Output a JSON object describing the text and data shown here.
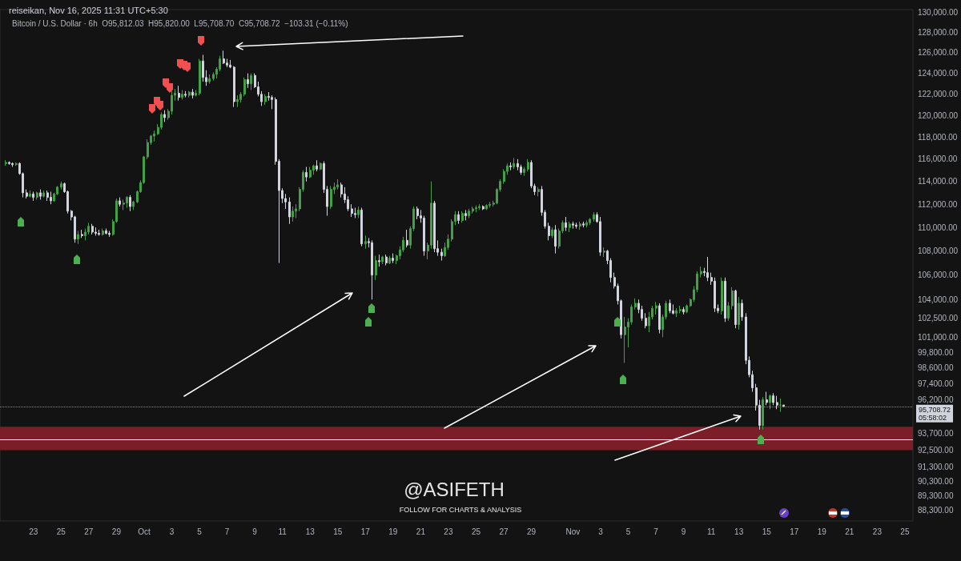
{
  "chart_data": {
    "type": "candlestick",
    "title": "reiseikan, Nov 16, 2025 11:31 UTC+5:30",
    "subtitle": "Bitcoin / U.S. Dollar · 6h  O95,812.03  H95,820.00  L95,708.70  C95,708.72  −103.31 (−0.11%)",
    "annotations": [
      "@ASIFETH",
      "FOLLOW FOR CHARTS & ANALYSIS",
      "05:58:02"
    ],
    "log": true,
    "ylim": [
      87550,
      130300
    ],
    "yticks": [
      {
        "value": 130000,
        "label": "130,000.00"
      },
      {
        "value": 128000,
        "label": "128,000.00"
      },
      {
        "value": 126000,
        "label": "126,000.00"
      },
      {
        "value": 124000,
        "label": "124,000.00"
      },
      {
        "value": 122000,
        "label": "122,000.00"
      },
      {
        "value": 120000,
        "label": "120,000.00"
      },
      {
        "value": 118000,
        "label": "118,000.00"
      },
      {
        "value": 116000,
        "label": "116,000.00"
      },
      {
        "value": 114000,
        "label": "114,000.00"
      },
      {
        "value": 112000,
        "label": "112,000.00"
      },
      {
        "value": 110000,
        "label": "110,000.00"
      },
      {
        "value": 108000,
        "label": "108,000.00"
      },
      {
        "value": 106000,
        "label": "106,000.00"
      },
      {
        "value": 104000,
        "label": "104,000.00"
      },
      {
        "value": 102500,
        "label": "102,500.00"
      },
      {
        "value": 101000,
        "label": "101,000.00"
      },
      {
        "value": 99800,
        "label": "99,800.00"
      },
      {
        "value": 98600,
        "label": "98,600.00"
      },
      {
        "value": 97400,
        "label": "97,400.00"
      },
      {
        "value": 96200,
        "label": "96,200.00"
      },
      {
        "value": 93700,
        "label": "93,700.00"
      },
      {
        "value": 92500,
        "label": "92,500.00"
      },
      {
        "value": 91300,
        "label": "91,300.00"
      },
      {
        "value": 90300,
        "label": "90,300.00"
      },
      {
        "value": 89300,
        "label": "89,300.00"
      },
      {
        "value": 88300,
        "label": "88,300.00"
      }
    ],
    "xlim": [
      "2025-09-20T14:00",
      "2025-11-25T14:00"
    ],
    "xticks": [
      {
        "value": "2025-09-23",
        "label": "23"
      },
      {
        "value": "2025-09-25",
        "label": "25"
      },
      {
        "value": "2025-09-27",
        "label": "27"
      },
      {
        "value": "2025-09-29",
        "label": "29"
      },
      {
        "value": "2025-10-01",
        "label": "Oct"
      },
      {
        "value": "2025-10-03",
        "label": "3"
      },
      {
        "value": "2025-10-05",
        "label": "5"
      },
      {
        "value": "2025-10-07",
        "label": "7"
      },
      {
        "value": "2025-10-09",
        "label": "9"
      },
      {
        "value": "2025-10-11",
        "label": "11"
      },
      {
        "value": "2025-10-13",
        "label": "13"
      },
      {
        "value": "2025-10-15",
        "label": "15"
      },
      {
        "value": "2025-10-17",
        "label": "17"
      },
      {
        "value": "2025-10-19",
        "label": "19"
      },
      {
        "value": "2025-10-21",
        "label": "21"
      },
      {
        "value": "2025-10-23",
        "label": "23"
      },
      {
        "value": "2025-10-25",
        "label": "25"
      },
      {
        "value": "2025-10-27",
        "label": "27"
      },
      {
        "value": "2025-10-29",
        "label": "29"
      },
      {
        "value": "2025-11-01",
        "label": "Nov"
      },
      {
        "value": "2025-11-03",
        "label": "3"
      },
      {
        "value": "2025-11-05",
        "label": "5"
      },
      {
        "value": "2025-11-07",
        "label": "7"
      },
      {
        "value": "2025-11-09",
        "label": "9"
      },
      {
        "value": "2025-11-11",
        "label": "11"
      },
      {
        "value": "2025-11-13",
        "label": "13"
      },
      {
        "value": "2025-11-15",
        "label": "15"
      },
      {
        "value": "2025-11-17",
        "label": "17"
      },
      {
        "value": "2025-11-19",
        "label": "19"
      },
      {
        "value": "2025-11-21",
        "label": "21"
      },
      {
        "value": "2025-11-23",
        "label": "23"
      },
      {
        "value": "2025-11-25",
        "label": "25"
      }
    ],
    "bands": [
      {
        "axis": "y",
        "from": 92500,
        "to": 94200,
        "color": "#7b1e27"
      }
    ],
    "ref_lines": [
      {
        "axis": "y",
        "value": 93300,
        "color": "#ffffff",
        "line_style": "solid"
      },
      {
        "axis": "y",
        "value": 95708.72,
        "label": "95,708.72",
        "color": "#8a8a8a",
        "line_style": "dotted"
      }
    ],
    "x": [
      "2025-09-21T00:00",
      "2025-09-21T06:00",
      "2025-09-21T12:00",
      "2025-09-21T18:00",
      "2025-09-22T00:00",
      "2025-09-22T06:00",
      "2025-09-22T12:00",
      "2025-09-22T18:00",
      "2025-09-23T00:00",
      "2025-09-23T06:00",
      "2025-09-23T12:00",
      "2025-09-23T18:00",
      "2025-09-24T00:00",
      "2025-09-24T06:00",
      "2025-09-24T12:00",
      "2025-09-24T18:00",
      "2025-09-25T00:00",
      "2025-09-25T06:00",
      "2025-09-25T12:00",
      "2025-09-25T18:00",
      "2025-09-26T00:00",
      "2025-09-26T06:00",
      "2025-09-26T12:00",
      "2025-09-26T18:00",
      "2025-09-27T00:00",
      "2025-09-27T06:00",
      "2025-09-27T12:00",
      "2025-09-27T18:00",
      "2025-09-28T00:00",
      "2025-09-28T06:00",
      "2025-09-28T12:00",
      "2025-09-28T18:00",
      "2025-09-29T00:00",
      "2025-09-29T06:00",
      "2025-09-29T12:00",
      "2025-09-29T18:00",
      "2025-09-30T00:00",
      "2025-09-30T06:00",
      "2025-09-30T12:00",
      "2025-09-30T18:00",
      "2025-10-01T00:00",
      "2025-10-01T06:00",
      "2025-10-01T12:00",
      "2025-10-01T18:00",
      "2025-10-02T00:00",
      "2025-10-02T06:00",
      "2025-10-02T12:00",
      "2025-10-02T18:00",
      "2025-10-03T00:00",
      "2025-10-03T06:00",
      "2025-10-03T12:00",
      "2025-10-03T18:00",
      "2025-10-04T00:00",
      "2025-10-04T06:00",
      "2025-10-04T12:00",
      "2025-10-04T18:00",
      "2025-10-05T00:00",
      "2025-10-05T06:00",
      "2025-10-05T12:00",
      "2025-10-05T18:00",
      "2025-10-06T00:00",
      "2025-10-06T06:00",
      "2025-10-06T12:00",
      "2025-10-06T18:00",
      "2025-10-07T00:00",
      "2025-10-07T06:00",
      "2025-10-07T12:00",
      "2025-10-07T18:00",
      "2025-10-08T00:00",
      "2025-10-08T06:00",
      "2025-10-08T12:00",
      "2025-10-08T18:00",
      "2025-10-09T00:00",
      "2025-10-09T06:00",
      "2025-10-09T12:00",
      "2025-10-09T18:00",
      "2025-10-10T00:00",
      "2025-10-10T06:00",
      "2025-10-10T12:00",
      "2025-10-10T18:00",
      "2025-10-11T00:00",
      "2025-10-11T06:00",
      "2025-10-11T12:00",
      "2025-10-11T18:00",
      "2025-10-12T00:00",
      "2025-10-12T06:00",
      "2025-10-12T12:00",
      "2025-10-12T18:00",
      "2025-10-13T00:00",
      "2025-10-13T06:00",
      "2025-10-13T12:00",
      "2025-10-13T18:00",
      "2025-10-14T00:00",
      "2025-10-14T06:00",
      "2025-10-14T12:00",
      "2025-10-14T18:00",
      "2025-10-15T00:00",
      "2025-10-15T06:00",
      "2025-10-15T12:00",
      "2025-10-15T18:00",
      "2025-10-16T00:00",
      "2025-10-16T06:00",
      "2025-10-16T12:00",
      "2025-10-16T18:00",
      "2025-10-17T00:00",
      "2025-10-17T06:00",
      "2025-10-17T12:00",
      "2025-10-17T18:00",
      "2025-10-18T00:00",
      "2025-10-18T06:00",
      "2025-10-18T12:00",
      "2025-10-18T18:00",
      "2025-10-19T00:00",
      "2025-10-19T06:00",
      "2025-10-19T12:00",
      "2025-10-19T18:00",
      "2025-10-20T00:00",
      "2025-10-20T06:00",
      "2025-10-20T12:00",
      "2025-10-20T18:00",
      "2025-10-21T00:00",
      "2025-10-21T06:00",
      "2025-10-21T12:00",
      "2025-10-21T18:00",
      "2025-10-22T00:00",
      "2025-10-22T06:00",
      "2025-10-22T12:00",
      "2025-10-22T18:00",
      "2025-10-23T00:00",
      "2025-10-23T06:00",
      "2025-10-23T12:00",
      "2025-10-23T18:00",
      "2025-10-24T00:00",
      "2025-10-24T06:00",
      "2025-10-24T12:00",
      "2025-10-24T18:00",
      "2025-10-25T00:00",
      "2025-10-25T06:00",
      "2025-10-25T12:00",
      "2025-10-25T18:00",
      "2025-10-26T00:00",
      "2025-10-26T06:00",
      "2025-10-26T12:00",
      "2025-10-26T18:00",
      "2025-10-27T00:00",
      "2025-10-27T06:00",
      "2025-10-27T12:00",
      "2025-10-27T18:00",
      "2025-10-28T00:00",
      "2025-10-28T06:00",
      "2025-10-28T12:00",
      "2025-10-28T18:00",
      "2025-10-29T00:00",
      "2025-10-29T06:00",
      "2025-10-29T12:00",
      "2025-10-29T18:00",
      "2025-10-30T00:00",
      "2025-10-30T06:00",
      "2025-10-30T12:00",
      "2025-10-30T18:00",
      "2025-10-31T00:00",
      "2025-10-31T06:00",
      "2025-10-31T12:00",
      "2025-10-31T18:00",
      "2025-11-01T00:00",
      "2025-11-01T06:00",
      "2025-11-01T12:00",
      "2025-11-01T18:00",
      "2025-11-02T00:00",
      "2025-11-02T06:00",
      "2025-11-02T12:00",
      "2025-11-02T18:00",
      "2025-11-03T00:00",
      "2025-11-03T06:00",
      "2025-11-03T12:00",
      "2025-11-03T18:00",
      "2025-11-04T00:00",
      "2025-11-04T06:00",
      "2025-11-04T12:00",
      "2025-11-04T18:00",
      "2025-11-05T00:00",
      "2025-11-05T06:00",
      "2025-11-05T12:00",
      "2025-11-05T18:00",
      "2025-11-06T00:00",
      "2025-11-06T06:00",
      "2025-11-06T12:00",
      "2025-11-06T18:00",
      "2025-11-07T00:00",
      "2025-11-07T06:00",
      "2025-11-07T12:00",
      "2025-11-07T18:00",
      "2025-11-08T00:00",
      "2025-11-08T06:00",
      "2025-11-08T12:00",
      "2025-11-08T18:00",
      "2025-11-09T00:00",
      "2025-11-09T06:00",
      "2025-11-09T12:00",
      "2025-11-09T18:00",
      "2025-11-10T00:00",
      "2025-11-10T06:00",
      "2025-11-10T12:00",
      "2025-11-10T18:00",
      "2025-11-11T00:00",
      "2025-11-11T06:00",
      "2025-11-11T12:00",
      "2025-11-11T18:00",
      "2025-11-12T00:00",
      "2025-11-12T06:00",
      "2025-11-12T12:00",
      "2025-11-12T18:00",
      "2025-11-13T00:00",
      "2025-11-13T06:00",
      "2025-11-13T12:00",
      "2025-11-13T18:00",
      "2025-11-14T00:00",
      "2025-11-14T06:00",
      "2025-11-14T12:00",
      "2025-11-14T18:00",
      "2025-11-15T00:00",
      "2025-11-15T06:00",
      "2025-11-15T12:00",
      "2025-11-15T18:00",
      "2025-11-16T00:00",
      "2025-11-16T06:00"
    ],
    "ohlc": [
      [
        115600,
        115900,
        115400,
        115700
      ],
      [
        115700,
        115800,
        115500,
        115600
      ],
      [
        115600,
        115700,
        115300,
        115500
      ],
      [
        115500,
        115700,
        115400,
        115600
      ],
      [
        115600,
        115700,
        114600,
        114700
      ],
      [
        114700,
        114800,
        112600,
        113000
      ],
      [
        113000,
        113300,
        112500,
        112700
      ],
      [
        112700,
        113200,
        112600,
        112900
      ],
      [
        112900,
        113100,
        112300,
        112600
      ],
      [
        112600,
        113100,
        112400,
        113000
      ],
      [
        113000,
        113300,
        112400,
        112700
      ],
      [
        112700,
        113200,
        112600,
        113000
      ],
      [
        113000,
        113200,
        112300,
        112600
      ],
      [
        112600,
        113100,
        112000,
        112300
      ],
      [
        112300,
        113000,
        112200,
        112900
      ],
      [
        112900,
        113600,
        112800,
        113500
      ],
      [
        113500,
        114000,
        113300,
        113800
      ],
      [
        113800,
        113900,
        113000,
        113100
      ],
      [
        113100,
        113200,
        111200,
        111400
      ],
      [
        111400,
        111500,
        110600,
        110900
      ],
      [
        110900,
        111000,
        108700,
        109000
      ],
      [
        109000,
        109700,
        108600,
        109400
      ],
      [
        109400,
        109800,
        109100,
        109300
      ],
      [
        109300,
        109900,
        108900,
        109600
      ],
      [
        109600,
        110400,
        109400,
        110100
      ],
      [
        110100,
        110300,
        109400,
        109600
      ],
      [
        109600,
        110000,
        109300,
        109500
      ],
      [
        109500,
        109800,
        109300,
        109400
      ],
      [
        109400,
        109900,
        109300,
        109700
      ],
      [
        109700,
        109900,
        109400,
        109500
      ],
      [
        109500,
        109700,
        109200,
        109400
      ],
      [
        109400,
        110700,
        109300,
        110500
      ],
      [
        110500,
        112500,
        110400,
        112300
      ],
      [
        112300,
        112600,
        111800,
        112000
      ],
      [
        112000,
        112400,
        111500,
        112100
      ],
      [
        112100,
        112700,
        111700,
        112600
      ],
      [
        112600,
        112800,
        111400,
        111800
      ],
      [
        111800,
        112300,
        111500,
        112200
      ],
      [
        112200,
        113200,
        112100,
        113100
      ],
      [
        113100,
        114100,
        113000,
        113900
      ],
      [
        113900,
        116300,
        113800,
        116200
      ],
      [
        116200,
        117800,
        116000,
        117500
      ],
      [
        117500,
        118200,
        117300,
        118100
      ],
      [
        118100,
        118600,
        117600,
        118300
      ],
      [
        118300,
        119200,
        118200,
        118900
      ],
      [
        118900,
        120300,
        118700,
        120100
      ],
      [
        120100,
        120500,
        119400,
        119800
      ],
      [
        119800,
        120600,
        119600,
        120400
      ],
      [
        120400,
        122300,
        120100,
        121900
      ],
      [
        121900,
        122500,
        121400,
        122100
      ],
      [
        122100,
        122800,
        121400,
        121700
      ],
      [
        121700,
        122400,
        121500,
        122000
      ],
      [
        122000,
        122300,
        121700,
        121900
      ],
      [
        121900,
        122300,
        121700,
        122200
      ],
      [
        122200,
        122500,
        121600,
        121900
      ],
      [
        121900,
        122400,
        121800,
        122100
      ],
      [
        122100,
        125400,
        121900,
        125200
      ],
      [
        125200,
        125800,
        123200,
        123600
      ],
      [
        123600,
        124300,
        122800,
        123200
      ],
      [
        123200,
        123900,
        123000,
        123500
      ],
      [
        123500,
        124100,
        123300,
        123900
      ],
      [
        123900,
        124600,
        123500,
        124400
      ],
      [
        124400,
        125700,
        124200,
        125400
      ],
      [
        125400,
        126200,
        124900,
        125000
      ],
      [
        125000,
        125400,
        124600,
        124800
      ],
      [
        124800,
        125300,
        124500,
        124600
      ],
      [
        124600,
        124700,
        120800,
        121300
      ],
      [
        121300,
        121900,
        120800,
        121500
      ],
      [
        121500,
        122200,
        121200,
        122000
      ],
      [
        122000,
        123600,
        121800,
        123400
      ],
      [
        123400,
        124000,
        122600,
        123000
      ],
      [
        123000,
        124000,
        122400,
        123800
      ],
      [
        123800,
        124000,
        122600,
        122700
      ],
      [
        122700,
        123200,
        121800,
        122000
      ],
      [
        122000,
        122300,
        120900,
        121300
      ],
      [
        121300,
        122000,
        121000,
        121800
      ],
      [
        121800,
        122200,
        121400,
        121700
      ],
      [
        121700,
        121900,
        120600,
        121500
      ],
      [
        121500,
        121700,
        115500,
        115800
      ],
      [
        115800,
        116000,
        107000,
        113200
      ],
      [
        113200,
        113400,
        112100,
        112500
      ],
      [
        112500,
        112900,
        111600,
        112200
      ],
      [
        112200,
        112600,
        110300,
        110900
      ],
      [
        110900,
        111800,
        110500,
        111400
      ],
      [
        111400,
        112000,
        110800,
        111600
      ],
      [
        111600,
        113500,
        111400,
        113300
      ],
      [
        113300,
        115000,
        113100,
        114800
      ],
      [
        114800,
        115300,
        114000,
        114400
      ],
      [
        114400,
        115300,
        114300,
        115000
      ],
      [
        115000,
        115500,
        114600,
        115400
      ],
      [
        115400,
        115900,
        114900,
        115100
      ],
      [
        115100,
        115700,
        115000,
        115600
      ],
      [
        115600,
        115800,
        113000,
        113300
      ],
      [
        113300,
        113600,
        111000,
        111800
      ],
      [
        111800,
        113600,
        111600,
        113300
      ],
      [
        113300,
        113900,
        112900,
        113500
      ],
      [
        113500,
        114200,
        113300,
        113700
      ],
      [
        113700,
        113900,
        112600,
        112900
      ],
      [
        112900,
        113500,
        112100,
        112400
      ],
      [
        112400,
        112700,
        111400,
        111600
      ],
      [
        111600,
        112000,
        110900,
        111200
      ],
      [
        111200,
        111700,
        110800,
        111100
      ],
      [
        111100,
        111800,
        110800,
        111500
      ],
      [
        111500,
        111700,
        108400,
        108600
      ],
      [
        108600,
        109300,
        108200,
        108800
      ],
      [
        108800,
        109100,
        108300,
        108700
      ],
      [
        108700,
        108900,
        104000,
        106000
      ],
      [
        106000,
        107600,
        105600,
        107200
      ],
      [
        107200,
        107700,
        106700,
        107100
      ],
      [
        107100,
        107600,
        106900,
        107500
      ],
      [
        107500,
        107700,
        106800,
        107000
      ],
      [
        107000,
        107600,
        106900,
        107400
      ],
      [
        107400,
        107800,
        107000,
        107200
      ],
      [
        107200,
        107700,
        106900,
        107600
      ],
      [
        107600,
        108400,
        107300,
        108100
      ],
      [
        108100,
        109200,
        107900,
        108900
      ],
      [
        108900,
        109800,
        108300,
        108500
      ],
      [
        108500,
        110100,
        108200,
        109900
      ],
      [
        109900,
        111800,
        109700,
        111600
      ],
      [
        111600,
        111800,
        110700,
        111000
      ],
      [
        111000,
        111500,
        110400,
        110800
      ],
      [
        110800,
        111000,
        107600,
        108000
      ],
      [
        108000,
        108700,
        107300,
        108500
      ],
      [
        108500,
        114000,
        108200,
        112100
      ],
      [
        112100,
        112300,
        107900,
        108200
      ],
      [
        108200,
        108900,
        107600,
        107900
      ],
      [
        107900,
        108200,
        107200,
        107600
      ],
      [
        107600,
        108700,
        107500,
        108300
      ],
      [
        108300,
        109400,
        108100,
        109000
      ],
      [
        109000,
        110700,
        108800,
        110500
      ],
      [
        110500,
        111400,
        110200,
        111100
      ],
      [
        111100,
        111400,
        110300,
        110600
      ],
      [
        110600,
        111400,
        110400,
        111200
      ],
      [
        111200,
        111500,
        110600,
        111000
      ],
      [
        111000,
        111600,
        110800,
        111400
      ],
      [
        111400,
        111800,
        111200,
        111600
      ],
      [
        111600,
        111900,
        111300,
        111700
      ],
      [
        111700,
        112000,
        111500,
        111800
      ],
      [
        111800,
        111900,
        111500,
        111600
      ],
      [
        111600,
        112000,
        111500,
        111900
      ],
      [
        111900,
        112200,
        111700,
        112000
      ],
      [
        112000,
        112300,
        111800,
        112100
      ],
      [
        112100,
        113400,
        112000,
        113300
      ],
      [
        113300,
        114200,
        113100,
        114000
      ],
      [
        114000,
        115100,
        113800,
        114900
      ],
      [
        114900,
        115600,
        114600,
        115400
      ],
      [
        115400,
        115700,
        115000,
        115300
      ],
      [
        115300,
        116100,
        115100,
        115600
      ],
      [
        115600,
        116000,
        115000,
        115300
      ],
      [
        115300,
        115500,
        114600,
        114800
      ],
      [
        114800,
        115300,
        114500,
        115100
      ],
      [
        115100,
        116000,
        114900,
        115700
      ],
      [
        115700,
        115900,
        113400,
        113600
      ],
      [
        113600,
        113800,
        112800,
        113100
      ],
      [
        113100,
        113500,
        112700,
        113300
      ],
      [
        113300,
        113600,
        111000,
        111300
      ],
      [
        111300,
        111500,
        109900,
        110100
      ],
      [
        110100,
        110400,
        108900,
        109300
      ],
      [
        109300,
        110000,
        109100,
        109800
      ],
      [
        109800,
        110200,
        107800,
        108400
      ],
      [
        108400,
        109900,
        108200,
        109700
      ],
      [
        109700,
        110600,
        109500,
        110400
      ],
      [
        110400,
        110900,
        109700,
        110000
      ],
      [
        110000,
        110500,
        109600,
        110300
      ],
      [
        110300,
        110500,
        109900,
        110200
      ],
      [
        110200,
        110400,
        109900,
        110100
      ],
      [
        110100,
        110500,
        109800,
        110300
      ],
      [
        110300,
        110500,
        110000,
        110200
      ],
      [
        110200,
        110600,
        110000,
        110400
      ],
      [
        110400,
        110800,
        110200,
        110700
      ],
      [
        110700,
        111300,
        110500,
        111100
      ],
      [
        111100,
        111300,
        110400,
        110500
      ],
      [
        110500,
        110900,
        107600,
        107900
      ],
      [
        107900,
        108300,
        107500,
        108000
      ],
      [
        108000,
        108100,
        106900,
        107200
      ],
      [
        107200,
        107400,
        105400,
        105800
      ],
      [
        105800,
        106200,
        104900,
        105100
      ],
      [
        105100,
        105300,
        103600,
        103900
      ],
      [
        103900,
        104000,
        100900,
        101200
      ],
      [
        101200,
        102600,
        99000,
        101800
      ],
      [
        101800,
        102500,
        100200,
        102200
      ],
      [
        102200,
        103600,
        102000,
        103400
      ],
      [
        103400,
        104100,
        103200,
        103700
      ],
      [
        103700,
        104000,
        102900,
        103200
      ],
      [
        103200,
        103500,
        102300,
        102500
      ],
      [
        102500,
        102900,
        101700,
        101900
      ],
      [
        101900,
        103000,
        101400,
        102600
      ],
      [
        102600,
        103500,
        102400,
        103300
      ],
      [
        103300,
        103800,
        102800,
        103500
      ],
      [
        103500,
        103700,
        101300,
        101600
      ],
      [
        101600,
        102800,
        101000,
        102600
      ],
      [
        102600,
        103900,
        102400,
        103700
      ],
      [
        103700,
        104000,
        102900,
        103100
      ],
      [
        103100,
        103600,
        102800,
        102900
      ],
      [
        102900,
        103300,
        102600,
        103100
      ],
      [
        103100,
        103500,
        102900,
        103200
      ],
      [
        103200,
        103400,
        102800,
        103000
      ],
      [
        103000,
        103600,
        102900,
        103500
      ],
      [
        103500,
        104100,
        103400,
        104000
      ],
      [
        104000,
        105100,
        103800,
        104800
      ],
      [
        104800,
        106300,
        104600,
        106100
      ],
      [
        106100,
        106700,
        105800,
        106300
      ],
      [
        106300,
        106600,
        105900,
        106200
      ],
      [
        106200,
        107500,
        105500,
        105800
      ],
      [
        105800,
        106200,
        105200,
        105500
      ],
      [
        105500,
        105800,
        103000,
        103300
      ],
      [
        103300,
        103600,
        102900,
        103100
      ],
      [
        103100,
        105800,
        102800,
        105500
      ],
      [
        105500,
        105800,
        102200,
        102500
      ],
      [
        102500,
        103800,
        102300,
        103500
      ],
      [
        103500,
        105000,
        103200,
        104700
      ],
      [
        104700,
        104800,
        101700,
        102000
      ],
      [
        102000,
        104200,
        101600,
        103700
      ],
      [
        103700,
        104000,
        102300,
        102600
      ],
      [
        102600,
        102900,
        98900,
        99200
      ],
      [
        99200,
        99500,
        97900,
        98100
      ],
      [
        98100,
        98400,
        96800,
        97100
      ],
      [
        97100,
        97400,
        95400,
        95800
      ],
      [
        95800,
        96200,
        94000,
        94300
      ],
      [
        94300,
        96400,
        94000,
        96200
      ],
      [
        96200,
        96800,
        95800,
        96000
      ],
      [
        96000,
        96600,
        95500,
        96500
      ],
      [
        96500,
        96700,
        95800,
        96000
      ],
      [
        96000,
        96500,
        95500,
        95800
      ],
      [
        95800,
        96300,
        95300,
        95812.03
      ],
      [
        95812.03,
        95820,
        95708.7,
        95708.72
      ]
    ],
    "colors": [
      "#43a047",
      "#d1d4dc",
      "#d1d4dc",
      "#43a047",
      "#d1d4dc",
      "#d1d4dc",
      "#d1d4dc",
      "#43a047",
      "#d1d4dc",
      "#43a047",
      "#d1d4dc",
      "#43a047",
      "#d1d4dc",
      "#d1d4dc",
      "#43a047",
      "#43a047",
      "#43a047",
      "#d1d4dc",
      "#d1d4dc",
      "#d1d4dc",
      "#d1d4dc",
      "#43a047",
      "#d1d4dc",
      "#43a047",
      "#43a047",
      "#d1d4dc",
      "#d1d4dc",
      "#d1d4dc",
      "#43a047",
      "#d1d4dc",
      "#d1d4dc",
      "#43a047",
      "#43a047",
      "#d1d4dc",
      "#43a047",
      "#43a047",
      "#d1d4dc",
      "#43a047",
      "#43a047",
      "#43a047",
      "#43a047",
      "#43a047",
      "#43a047",
      "#43a047",
      "#43a047",
      "#43a047",
      "#d1d4dc",
      "#43a047",
      "#43a047",
      "#43a047",
      "#d1d4dc",
      "#43a047",
      "#d1d4dc",
      "#43a047",
      "#d1d4dc",
      "#43a047",
      "#43a047",
      "#d1d4dc",
      "#d1d4dc",
      "#43a047",
      "#43a047",
      "#43a047",
      "#43a047",
      "#d1d4dc",
      "#d1d4dc",
      "#d1d4dc",
      "#d1d4dc",
      "#43a047",
      "#43a047",
      "#43a047",
      "#d1d4dc",
      "#43a047",
      "#d1d4dc",
      "#d1d4dc",
      "#d1d4dc",
      "#43a047",
      "#d1d4dc",
      "#d1d4dc",
      "#d1d4dc",
      "#d1d4dc",
      "#d1d4dc",
      "#d1d4dc",
      "#d1d4dc",
      "#43a047",
      "#43a047",
      "#43a047",
      "#43a047",
      "#d1d4dc",
      "#43a047",
      "#43a047",
      "#d1d4dc",
      "#43a047",
      "#d1d4dc",
      "#d1d4dc",
      "#43a047",
      "#43a047",
      "#43a047",
      "#d1d4dc",
      "#d1d4dc",
      "#d1d4dc",
      "#d1d4dc",
      "#d1d4dc",
      "#43a047",
      "#d1d4dc",
      "#43a047",
      "#d1d4dc",
      "#d1d4dc",
      "#43a047",
      "#d1d4dc",
      "#43a047",
      "#d1d4dc",
      "#43a047",
      "#d1d4dc",
      "#43a047",
      "#43a047",
      "#43a047",
      "#d1d4dc",
      "#43a047",
      "#43a047",
      "#d1d4dc",
      "#d1d4dc",
      "#d1d4dc",
      "#43a047",
      "#43a047",
      "#d1d4dc",
      "#d1d4dc",
      "#d1d4dc",
      "#43a047",
      "#43a047",
      "#43a047",
      "#43a047",
      "#d1d4dc",
      "#43a047",
      "#d1d4dc",
      "#43a047",
      "#43a047",
      "#43a047",
      "#43a047",
      "#d1d4dc",
      "#43a047",
      "#43a047",
      "#43a047",
      "#43a047",
      "#43a047",
      "#43a047",
      "#43a047",
      "#d1d4dc",
      "#43a047",
      "#d1d4dc",
      "#d1d4dc",
      "#43a047",
      "#43a047",
      "#d1d4dc",
      "#d1d4dc",
      "#43a047",
      "#d1d4dc",
      "#d1d4dc",
      "#d1d4dc",
      "#43a047",
      "#d1d4dc",
      "#43a047",
      "#43a047",
      "#d1d4dc",
      "#43a047",
      "#d1d4dc",
      "#d1d4dc",
      "#43a047",
      "#d1d4dc",
      "#43a047",
      "#43a047",
      "#43a047",
      "#d1d4dc",
      "#d1d4dc",
      "#43a047",
      "#d1d4dc",
      "#d1d4dc",
      "#d1d4dc",
      "#d1d4dc",
      "#d1d4dc",
      "#43a047",
      "#43a047",
      "#43a047",
      "#43a047",
      "#d1d4dc",
      "#d1d4dc",
      "#d1d4dc",
      "#43a047",
      "#43a047",
      "#43a047",
      "#d1d4dc",
      "#43a047",
      "#43a047",
      "#d1d4dc",
      "#d1d4dc",
      "#43a047",
      "#43a047",
      "#d1d4dc",
      "#43a047",
      "#43a047",
      "#43a047",
      "#43a047",
      "#43a047",
      "#d1d4dc",
      "#d1d4dc",
      "#d1d4dc",
      "#d1d4dc",
      "#d1d4dc",
      "#43a047",
      "#d1d4dc",
      "#43a047",
      "#43a047",
      "#d1d4dc",
      "#43a047",
      "#d1d4dc",
      "#d1d4dc",
      "#d1d4dc",
      "#d1d4dc",
      "#d1d4dc",
      "#d1d4dc",
      "#43a047",
      "#d1d4dc",
      "#43a047",
      "#d1d4dc",
      "#d1d4dc",
      "#43a047",
      "#d1d4dc"
    ]
  }
}
